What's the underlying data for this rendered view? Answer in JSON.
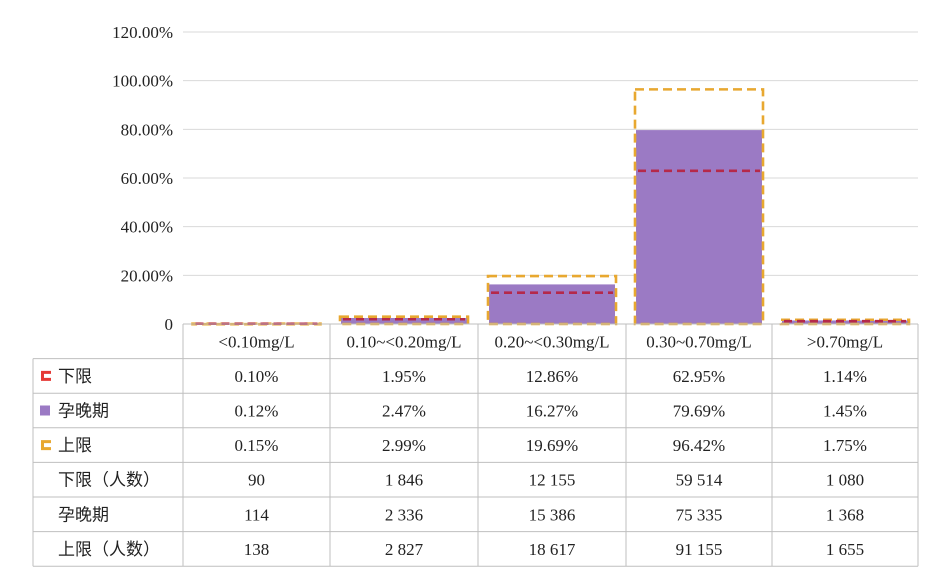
{
  "colors": {
    "lower": "#b5294a",
    "mid": "#9b7ac4",
    "upper": "#e8a830",
    "lower_icon": "#e53935",
    "grid": "#d9d9d9",
    "table_line": "#bfbfbf"
  },
  "chart_data": {
    "type": "bar",
    "title": "",
    "xlabel": "",
    "ylabel": "",
    "ylim": [
      0,
      120
    ],
    "y_ticks": [
      "0",
      "20.00%",
      "40.00%",
      "60.00%",
      "80.00%",
      "100.00%",
      "120.00%"
    ],
    "grid": true,
    "categories": [
      "<0.10mg/L",
      "0.10~<0.20mg/L",
      "0.20~<0.30mg/L",
      "0.30~0.70mg/L",
      ">0.70mg/L"
    ],
    "series": [
      {
        "name": "下限",
        "style": "dashed-outline",
        "values": [
          0.1,
          1.95,
          12.86,
          62.95,
          1.14
        ]
      },
      {
        "name": "孕晚期",
        "style": "filled",
        "values": [
          0.12,
          2.47,
          16.27,
          79.69,
          1.45
        ]
      },
      {
        "name": "上限",
        "style": "dashed-outline",
        "values": [
          0.15,
          2.99,
          19.69,
          96.42,
          1.75
        ]
      }
    ],
    "table_rows": [
      {
        "label": "下限",
        "legend_icon": "lower",
        "cells": [
          "0.10%",
          "1.95%",
          "12.86%",
          "62.95%",
          "1.14%"
        ]
      },
      {
        "label": "孕晚期",
        "legend_icon": "mid",
        "cells": [
          "0.12%",
          "2.47%",
          "16.27%",
          "79.69%",
          "1.45%"
        ]
      },
      {
        "label": "上限",
        "legend_icon": "upper",
        "cells": [
          "0.15%",
          "2.99%",
          "19.69%",
          "96.42%",
          "1.75%"
        ]
      },
      {
        "label": "下限（人数）",
        "legend_icon": "",
        "cells": [
          "90",
          "1 846",
          "12 155",
          "59 514",
          "1 080"
        ]
      },
      {
        "label": "孕晚期",
        "legend_icon": "",
        "cells": [
          "114",
          "2 336",
          "15 386",
          "75 335",
          "1 368"
        ]
      },
      {
        "label": "上限（人数）",
        "legend_icon": "",
        "cells": [
          "138",
          "2 827",
          "18 617",
          "91 155",
          "1 655"
        ]
      }
    ]
  }
}
